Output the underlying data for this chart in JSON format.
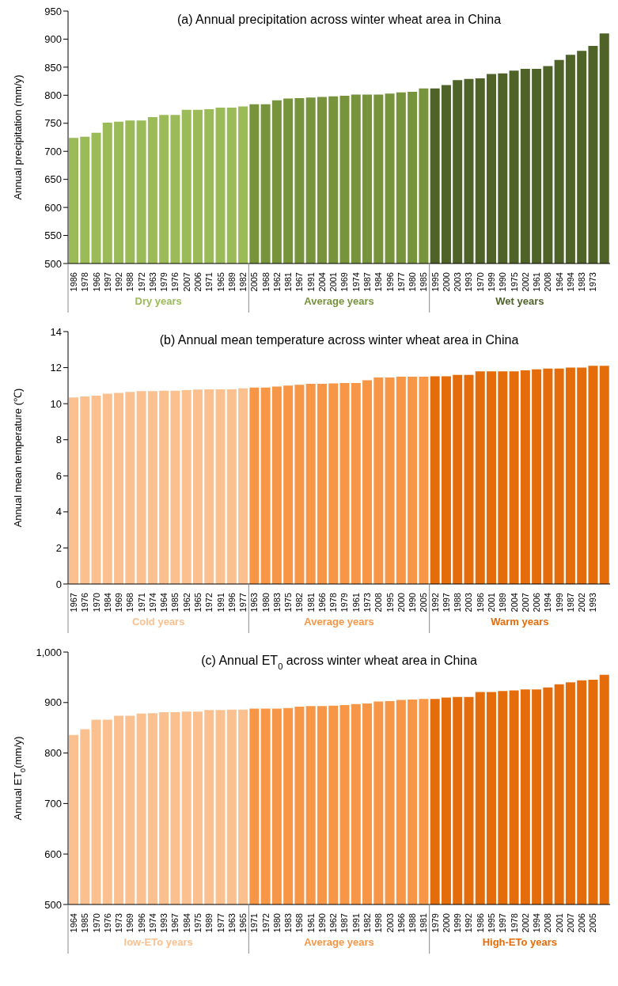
{
  "chart_data": [
    {
      "type": "bar",
      "title": "(a) Annual precipitation across winter wheat area in China",
      "ylabel": "Annual precipitation (mm/y)",
      "stacked": true,
      "categories": [
        "1986",
        "1978",
        "1966",
        "1997",
        "1992",
        "1988",
        "1972",
        "1963",
        "1979",
        "1976",
        "2007",
        "2006",
        "1971",
        "1965",
        "1989",
        "1982",
        "2005",
        "1968",
        "1962",
        "1981",
        "1967",
        "1991",
        "2004",
        "2001",
        "1969",
        "1974",
        "1987",
        "1984",
        "1996",
        "1977",
        "1980",
        "1985",
        "1995",
        "2000",
        "2003",
        "1993",
        "1970",
        "1999",
        "1990",
        "1975",
        "2002",
        "1961",
        "2008",
        "1964",
        "1994",
        "1983",
        "1973",
        null
      ],
      "series": [
        {
          "name": "Dry years",
          "color": "#9bbb59",
          "values": [
            724,
            726,
            733,
            751,
            753,
            755,
            755,
            761,
            765,
            765,
            774,
            774,
            775,
            778,
            778,
            780,
            null,
            null,
            null,
            null,
            null,
            null,
            null,
            null,
            null,
            null,
            null,
            null,
            null,
            null,
            null,
            null,
            null,
            null,
            null,
            null,
            null,
            null,
            null,
            null,
            null,
            null,
            null,
            null,
            null,
            null,
            null,
            null
          ]
        },
        {
          "name": "Average years",
          "color": "#77933c",
          "values": [
            null,
            null,
            null,
            null,
            null,
            null,
            null,
            null,
            null,
            null,
            null,
            null,
            null,
            null,
            null,
            null,
            784,
            784,
            791,
            794,
            795,
            796,
            797,
            798,
            799,
            801,
            801,
            801,
            803,
            805,
            806,
            812,
            null,
            null,
            null,
            null,
            null,
            null,
            null,
            null,
            null,
            null,
            null,
            null,
            null,
            null,
            null,
            null
          ]
        },
        {
          "name": "Wet years",
          "color": "#4f6228",
          "values": [
            null,
            null,
            null,
            null,
            null,
            null,
            null,
            null,
            null,
            null,
            null,
            null,
            null,
            null,
            null,
            null,
            null,
            null,
            null,
            null,
            null,
            null,
            null,
            null,
            null,
            null,
            null,
            null,
            null,
            null,
            null,
            null,
            812,
            818,
            827,
            829,
            830,
            838,
            839,
            844,
            847,
            847,
            852,
            863,
            872,
            879,
            888,
            910
          ]
        }
      ],
      "ylim": [
        500,
        950
      ],
      "yticks": [
        500,
        550,
        600,
        650,
        700,
        750,
        800,
        850,
        900,
        950
      ]
    },
    {
      "type": "bar",
      "title": "(b) Annual mean temperature across winter wheat area in China",
      "ylabel": "Annual mean temperature (℃)",
      "stacked": true,
      "categories": [
        "1967",
        "1976",
        "1970",
        "1984",
        "1969",
        "1968",
        "1971",
        "1974",
        "1964",
        "1985",
        "1962",
        "1965",
        "1972",
        "1991",
        "1996",
        "1977",
        "1963",
        "1980",
        "1983",
        "1975",
        "1982",
        "1981",
        "1966",
        "1978",
        "1979",
        "1961",
        "1973",
        "2008",
        "1995",
        "2000",
        "1990",
        "2005",
        "1992",
        "1997",
        "1988",
        "2003",
        "1986",
        "2001",
        "1989",
        "2004",
        "2007",
        "2006",
        "1994",
        "1999",
        "1987",
        "2002",
        "1993",
        null
      ],
      "series": [
        {
          "name": "Cold years",
          "color": "#fac090",
          "values": [
            10.35,
            10.4,
            10.45,
            10.55,
            10.6,
            10.65,
            10.7,
            10.7,
            10.72,
            10.72,
            10.75,
            10.78,
            10.8,
            10.8,
            10.8,
            10.85,
            null,
            null,
            null,
            null,
            null,
            null,
            null,
            null,
            null,
            null,
            null,
            null,
            null,
            null,
            null,
            null,
            null,
            null,
            null,
            null,
            null,
            null,
            null,
            null,
            null,
            null,
            null,
            null,
            null,
            null,
            null,
            null
          ]
        },
        {
          "name": "Average years",
          "color": "#f79646",
          "values": [
            null,
            null,
            null,
            null,
            null,
            null,
            null,
            null,
            null,
            null,
            null,
            null,
            null,
            null,
            null,
            null,
            10.9,
            10.9,
            10.95,
            11.0,
            11.05,
            11.1,
            11.1,
            11.12,
            11.15,
            11.15,
            11.3,
            11.45,
            11.45,
            11.5,
            11.5,
            11.5,
            null,
            null,
            null,
            null,
            null,
            null,
            null,
            null,
            null,
            null,
            null,
            null,
            null,
            null,
            null,
            null
          ]
        },
        {
          "name": "Warm years",
          "color": "#e46c0a",
          "values": [
            null,
            null,
            null,
            null,
            null,
            null,
            null,
            null,
            null,
            null,
            null,
            null,
            null,
            null,
            null,
            null,
            null,
            null,
            null,
            null,
            null,
            null,
            null,
            null,
            null,
            null,
            null,
            null,
            null,
            null,
            null,
            null,
            11.52,
            11.52,
            11.6,
            11.6,
            11.8,
            11.8,
            11.8,
            11.8,
            11.85,
            11.9,
            11.95,
            11.95,
            12.0,
            12.0,
            12.1,
            12.1
          ]
        }
      ],
      "ylim": [
        0,
        14
      ],
      "yticks": [
        0,
        2,
        4,
        6,
        8,
        10,
        12,
        14
      ]
    },
    {
      "type": "bar",
      "title": "(c) Annual ET$_{0}$ across winter wheat area in China",
      "ylabel": "Annual ET$_{0}$(mm/y)",
      "stacked": true,
      "categories": [
        "1964",
        "1985",
        "1970",
        "1976",
        "1973",
        "1969",
        "1996",
        "1974",
        "1993",
        "1967",
        "1984",
        "1975",
        "1989",
        "1977",
        "1963",
        "1965",
        "1971",
        "1972",
        "1980",
        "1983",
        "1968",
        "1961",
        "1990",
        "1962",
        "1987",
        "1991",
        "1982",
        "1998",
        "2003",
        "1966",
        "1988",
        "1981",
        "1979",
        "2000",
        "1999",
        "1992",
        "1986",
        "1995",
        "1997",
        "1978",
        "2002",
        "1994",
        "2008",
        "2001",
        "2007",
        "2006",
        "2005",
        null
      ],
      "series": [
        {
          "name": "low-ETo years",
          "color": "#fac090",
          "values": [
            836,
            847,
            866,
            866,
            874,
            874,
            878,
            879,
            881,
            881,
            882,
            882,
            885,
            885,
            886,
            886,
            null,
            null,
            null,
            null,
            null,
            null,
            null,
            null,
            null,
            null,
            null,
            null,
            null,
            null,
            null,
            null,
            null,
            null,
            null,
            null,
            null,
            null,
            null,
            null,
            null,
            null,
            null,
            null,
            null,
            null,
            null,
            null
          ]
        },
        {
          "name": "Average years",
          "color": "#f79646",
          "values": [
            null,
            null,
            null,
            null,
            null,
            null,
            null,
            null,
            null,
            null,
            null,
            null,
            null,
            null,
            null,
            null,
            888,
            888,
            888,
            889,
            892,
            893,
            893,
            894,
            895,
            897,
            898,
            902,
            903,
            905,
            906,
            907,
            null,
            null,
            null,
            null,
            null,
            null,
            null,
            null,
            null,
            null,
            null,
            null,
            null,
            null,
            null,
            null
          ]
        },
        {
          "name": "High-ETo years",
          "color": "#e46c0a",
          "values": [
            null,
            null,
            null,
            null,
            null,
            null,
            null,
            null,
            null,
            null,
            null,
            null,
            null,
            null,
            null,
            null,
            null,
            null,
            null,
            null,
            null,
            null,
            null,
            null,
            null,
            null,
            null,
            null,
            null,
            null,
            null,
            null,
            907,
            910,
            911,
            911,
            921,
            921,
            923,
            924,
            926,
            926,
            930,
            936,
            940,
            944,
            945,
            955
          ]
        }
      ],
      "ylim": [
        500,
        1000
      ],
      "yticks": [
        500,
        600,
        700,
        800,
        900,
        {
          "value": 1000,
          "label": "1,000"
        }
      ]
    }
  ]
}
